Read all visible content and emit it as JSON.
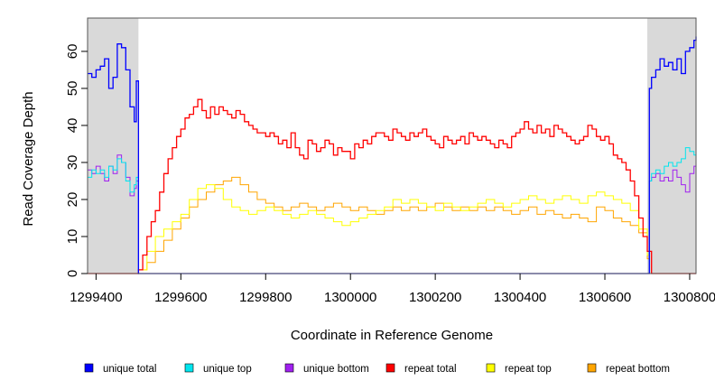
{
  "chart_data": {
    "type": "line",
    "xlabel": "Coordinate in Reference Genome",
    "ylabel": "Read Coverage Depth",
    "xlim": [
      1299380,
      1300815
    ],
    "ylim": [
      0,
      69
    ],
    "xticks": [
      1299400,
      1299600,
      1299800,
      1300000,
      1300200,
      1300400,
      1300600,
      1300800
    ],
    "yticks": [
      0,
      10,
      20,
      30,
      40,
      50,
      60
    ],
    "grid": false,
    "legend_position": "bottom",
    "shaded_regions": [
      {
        "from": 1299380,
        "to": 1299500,
        "color": "#d9d9d9"
      },
      {
        "from": 1300700,
        "to": 1300815,
        "color": "#d9d9d9"
      }
    ],
    "series": [
      {
        "name": "unique total",
        "color": "#0000ff",
        "x": [
          1299380,
          1299390,
          1299400,
          1299410,
          1299420,
          1299430,
          1299440,
          1299450,
          1299460,
          1299470,
          1299480,
          1299490,
          1299495,
          1299500,
          1299505,
          1299600,
          1299800,
          1300000,
          1300200,
          1300400,
          1300600,
          1300690,
          1300700,
          1300705,
          1300710,
          1300720,
          1300730,
          1300740,
          1300750,
          1300760,
          1300770,
          1300780,
          1300790,
          1300800,
          1300810,
          1300815
        ],
        "y": [
          54,
          53,
          55,
          56,
          58,
          50,
          53,
          62,
          61,
          55,
          45,
          41,
          52,
          0,
          0,
          0,
          0,
          0,
          0,
          0,
          0,
          0,
          0,
          50,
          53,
          55,
          58,
          56,
          57,
          55,
          58,
          54,
          60,
          61,
          63,
          64
        ]
      },
      {
        "name": "unique top",
        "color": "#00e5ee",
        "x": [
          1299380,
          1299390,
          1299400,
          1299410,
          1299420,
          1299430,
          1299440,
          1299450,
          1299460,
          1299470,
          1299480,
          1299490,
          1299495,
          1299500,
          1299505,
          1300690,
          1300700,
          1300705,
          1300710,
          1300720,
          1300730,
          1300740,
          1300750,
          1300760,
          1300770,
          1300780,
          1300790,
          1300800,
          1300810,
          1300815
        ],
        "y": [
          26,
          28,
          27,
          28,
          26,
          29,
          28,
          31,
          30,
          25,
          22,
          24,
          26,
          0,
          0,
          0,
          0,
          25,
          27,
          28,
          27,
          29,
          30,
          29,
          30,
          31,
          34,
          33,
          32,
          33
        ]
      },
      {
        "name": "unique bottom",
        "color": "#a020f0",
        "x": [
          1299380,
          1299390,
          1299400,
          1299410,
          1299420,
          1299430,
          1299440,
          1299450,
          1299460,
          1299470,
          1299480,
          1299490,
          1299495,
          1299500,
          1299505,
          1300690,
          1300700,
          1300705,
          1300710,
          1300720,
          1300730,
          1300740,
          1300750,
          1300760,
          1300770,
          1300780,
          1300790,
          1300800,
          1300810,
          1300815
        ],
        "y": [
          28,
          27,
          29,
          27,
          25,
          29,
          27,
          32,
          30,
          26,
          21,
          23,
          25,
          0,
          0,
          0,
          0,
          25,
          26,
          27,
          25,
          26,
          25,
          28,
          26,
          24,
          22,
          27,
          29,
          28
        ]
      },
      {
        "name": "repeat total",
        "color": "#ff0000",
        "x": [
          1299380,
          1299490,
          1299500,
          1299510,
          1299520,
          1299530,
          1299540,
          1299550,
          1299560,
          1299570,
          1299580,
          1299590,
          1299600,
          1299610,
          1299620,
          1299630,
          1299640,
          1299650,
          1299660,
          1299670,
          1299680,
          1299690,
          1299700,
          1299710,
          1299720,
          1299730,
          1299740,
          1299750,
          1299760,
          1299770,
          1299780,
          1299790,
          1299800,
          1299810,
          1299820,
          1299830,
          1299840,
          1299850,
          1299860,
          1299870,
          1299880,
          1299890,
          1299900,
          1299910,
          1299920,
          1299930,
          1299940,
          1299950,
          1299960,
          1299970,
          1299980,
          1299990,
          1300000,
          1300010,
          1300020,
          1300030,
          1300040,
          1300050,
          1300060,
          1300070,
          1300080,
          1300090,
          1300100,
          1300110,
          1300120,
          1300130,
          1300140,
          1300150,
          1300160,
          1300170,
          1300180,
          1300190,
          1300200,
          1300210,
          1300220,
          1300230,
          1300240,
          1300250,
          1300260,
          1300270,
          1300280,
          1300290,
          1300300,
          1300310,
          1300320,
          1300330,
          1300340,
          1300350,
          1300360,
          1300370,
          1300380,
          1300390,
          1300400,
          1300410,
          1300420,
          1300430,
          1300440,
          1300450,
          1300460,
          1300470,
          1300480,
          1300490,
          1300500,
          1300510,
          1300520,
          1300530,
          1300540,
          1300550,
          1300560,
          1300570,
          1300580,
          1300590,
          1300600,
          1300610,
          1300620,
          1300630,
          1300640,
          1300650,
          1300660,
          1300670,
          1300680,
          1300690,
          1300700,
          1300710,
          1300815
        ],
        "y": [
          0,
          0,
          1,
          5,
          10,
          14,
          17,
          22,
          27,
          31,
          34,
          37,
          39,
          42,
          43,
          45,
          47,
          44,
          42,
          45,
          43,
          45,
          44,
          43,
          42,
          44,
          43,
          41,
          40,
          39,
          38,
          38,
          37,
          38,
          37,
          35,
          36,
          34,
          38,
          34,
          32,
          31,
          36,
          35,
          33,
          34,
          36,
          35,
          32,
          34,
          33,
          33,
          31,
          35,
          34,
          36,
          35,
          37,
          38,
          38,
          37,
          36,
          39,
          38,
          37,
          36,
          38,
          37,
          38,
          39,
          37,
          36,
          35,
          34,
          37,
          36,
          35,
          36,
          37,
          35,
          38,
          37,
          36,
          37,
          36,
          35,
          34,
          36,
          35,
          34,
          37,
          38,
          39,
          41,
          39,
          38,
          40,
          38,
          39,
          37,
          40,
          39,
          38,
          37,
          36,
          35,
          36,
          37,
          40,
          39,
          37,
          36,
          37,
          35,
          32,
          31,
          30,
          28,
          25,
          21,
          15,
          10,
          6,
          0,
          0
        ]
      },
      {
        "name": "repeat top",
        "color": "#ffff00",
        "x": [
          1299380,
          1299495,
          1299500,
          1299520,
          1299540,
          1299560,
          1299580,
          1299600,
          1299620,
          1299640,
          1299660,
          1299680,
          1299700,
          1299720,
          1299740,
          1299760,
          1299780,
          1299800,
          1299820,
          1299840,
          1299860,
          1299880,
          1299900,
          1299920,
          1299940,
          1299960,
          1299980,
          1300000,
          1300020,
          1300040,
          1300060,
          1300080,
          1300100,
          1300120,
          1300140,
          1300160,
          1300180,
          1300200,
          1300220,
          1300240,
          1300260,
          1300280,
          1300300,
          1300320,
          1300340,
          1300360,
          1300380,
          1300400,
          1300420,
          1300440,
          1300460,
          1300480,
          1300500,
          1300520,
          1300540,
          1300560,
          1300580,
          1300600,
          1300620,
          1300640,
          1300660,
          1300680,
          1300700,
          1300705,
          1300815
        ],
        "y": [
          0,
          0,
          1,
          6,
          10,
          12,
          14,
          16,
          20,
          23,
          24,
          23,
          20,
          18,
          17,
          16,
          17,
          18,
          17,
          16,
          15,
          16,
          17,
          16,
          15,
          14,
          13,
          14,
          15,
          16,
          17,
          18,
          20,
          19,
          20,
          19,
          18,
          17,
          19,
          18,
          17,
          18,
          19,
          20,
          19,
          18,
          19,
          20,
          21,
          20,
          19,
          20,
          21,
          20,
          19,
          21,
          22,
          21,
          20,
          19,
          17,
          12,
          5,
          0,
          0
        ]
      },
      {
        "name": "repeat bottom",
        "color": "#ffa500",
        "x": [
          1299380,
          1299495,
          1299500,
          1299520,
          1299540,
          1299560,
          1299580,
          1299600,
          1299620,
          1299640,
          1299660,
          1299680,
          1299700,
          1299720,
          1299740,
          1299760,
          1299780,
          1299800,
          1299820,
          1299840,
          1299860,
          1299880,
          1299900,
          1299920,
          1299940,
          1299960,
          1299980,
          1300000,
          1300020,
          1300040,
          1300060,
          1300080,
          1300100,
          1300120,
          1300140,
          1300160,
          1300180,
          1300200,
          1300220,
          1300240,
          1300260,
          1300280,
          1300300,
          1300320,
          1300340,
          1300360,
          1300380,
          1300400,
          1300420,
          1300440,
          1300460,
          1300480,
          1300500,
          1300520,
          1300540,
          1300560,
          1300580,
          1300600,
          1300620,
          1300640,
          1300660,
          1300680,
          1300700,
          1300705,
          1300815
        ],
        "y": [
          0,
          0,
          1,
          3,
          6,
          9,
          12,
          15,
          18,
          20,
          22,
          24,
          25,
          26,
          24,
          22,
          20,
          19,
          18,
          17,
          18,
          19,
          18,
          17,
          18,
          19,
          18,
          17,
          18,
          17,
          16,
          17,
          18,
          17,
          18,
          17,
          18,
          19,
          18,
          17,
          18,
          17,
          18,
          17,
          18,
          17,
          16,
          17,
          18,
          16,
          17,
          16,
          15,
          16,
          15,
          14,
          18,
          17,
          15,
          14,
          13,
          11,
          4,
          0,
          0
        ]
      }
    ]
  }
}
